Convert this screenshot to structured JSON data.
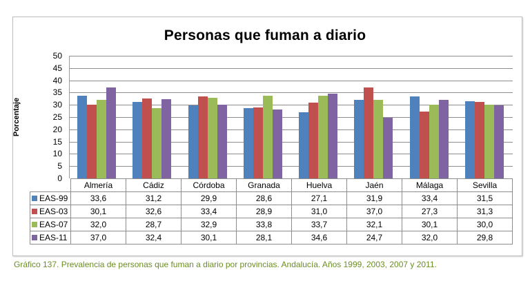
{
  "chart_data": {
    "type": "bar",
    "title": "Personas que fuman a diario",
    "xlabel": "",
    "ylabel": "Porcentaje",
    "ylim": [
      0,
      50
    ],
    "yticks": [
      0,
      5,
      10,
      15,
      20,
      25,
      30,
      35,
      40,
      45,
      50
    ],
    "grid": true,
    "legend_position": "data-table-left",
    "categories": [
      "Almería",
      "Cádiz",
      "Córdoba",
      "Granada",
      "Huelva",
      "Jaén",
      "Málaga",
      "Sevilla"
    ],
    "series": [
      {
        "name": "EAS-99",
        "color": "#4f81bd",
        "values": [
          33.6,
          31.2,
          29.9,
          28.6,
          27.1,
          31.9,
          33.4,
          31.5
        ],
        "labels": [
          "33,6",
          "31,2",
          "29,9",
          "28,6",
          "27,1",
          "31,9",
          "33,4",
          "31,5"
        ]
      },
      {
        "name": "EAS-03",
        "color": "#c0504d",
        "values": [
          30.1,
          32.6,
          33.4,
          28.9,
          31.0,
          37.0,
          27.3,
          31.3
        ],
        "labels": [
          "30,1",
          "32,6",
          "33,4",
          "28,9",
          "31,0",
          "37,0",
          "27,3",
          "31,3"
        ]
      },
      {
        "name": "EAS-07",
        "color": "#9bbb59",
        "values": [
          32.0,
          28.7,
          32.9,
          33.8,
          33.7,
          32.1,
          30.1,
          30.0
        ],
        "labels": [
          "32,0",
          "28,7",
          "32,9",
          "33,8",
          "33,7",
          "32,1",
          "30,1",
          "30,0"
        ]
      },
      {
        "name": "EAS-11",
        "color": "#8064a2",
        "values": [
          37.0,
          32.4,
          30.1,
          28.1,
          34.6,
          24.7,
          32.0,
          29.8
        ],
        "labels": [
          "37,0",
          "32,4",
          "30,1",
          "28,1",
          "34,6",
          "24,7",
          "32,0",
          "29,8"
        ]
      }
    ]
  },
  "caption": "Gráfico 137. Prevalencia de personas que fuman a diario por provincias. Andalucía. Años 1999, 2003, 2007 y 2011."
}
